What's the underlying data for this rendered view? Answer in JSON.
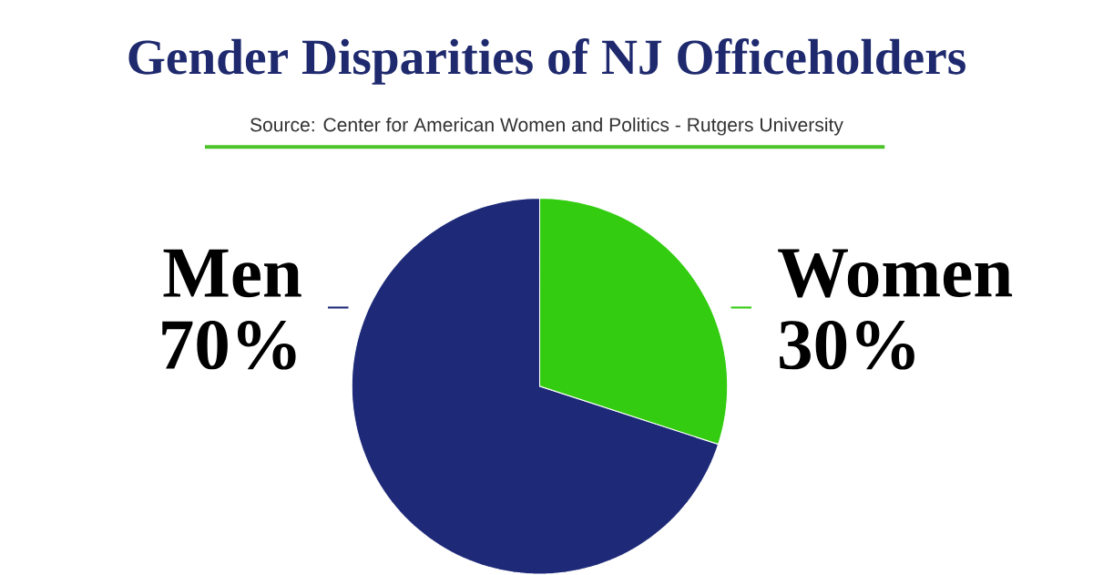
{
  "chart_data": {
    "type": "pie",
    "title": "Gender Disparities of NJ Officeholders",
    "annotations": [
      "Source: Center for American Women and Politics - Rutgers University"
    ],
    "categories": [
      "Men",
      "Women"
    ],
    "values": [
      70,
      30
    ],
    "colors": [
      "#1e2a78",
      "#33cc11"
    ],
    "value_labels": [
      "70%",
      "30%"
    ]
  }
}
